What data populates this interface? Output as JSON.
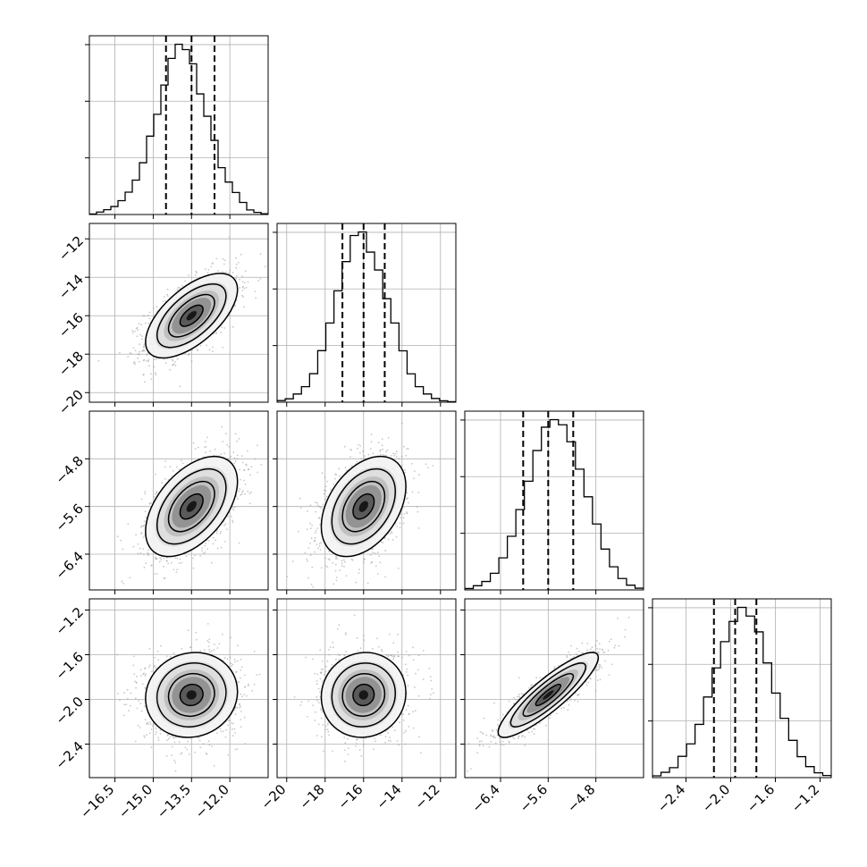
{
  "chart_data": {
    "type": "corner",
    "title": "",
    "colors": {
      "line": "#000000",
      "grid": "#b0b0b0",
      "scatter": "#9a9a9a",
      "background": "#ffffff"
    },
    "grid": true,
    "legend": "none",
    "parameters": [
      {
        "label": "",
        "range": [
          -17.5,
          -10.5
        ],
        "ticks": [
          -16.5,
          -15.0,
          -13.5,
          -12.0
        ],
        "tick_labels": [
          "−16.5",
          "−15.0",
          "−13.5",
          "−12.0"
        ],
        "quantiles": [
          -14.5,
          -13.5,
          -12.6
        ],
        "hist": [
          0.3,
          1.4,
          2.7,
          4.5,
          7.8,
          12.6,
          19.4,
          29.2,
          44.2,
          56.5,
          73.0,
          88.0,
          96.0,
          93.0,
          85.0,
          68.0,
          55.4,
          41.8,
          26.4,
          18.3,
          12.4,
          6.8,
          2.6,
          1.2,
          0.4
        ]
      },
      {
        "label": "",
        "range": [
          -20.5,
          -11.2
        ],
        "ticks": [
          -20,
          -18,
          -16,
          -14,
          -12
        ],
        "tick_labels": [
          "−20",
          "−18",
          "−16",
          "−14",
          "−12"
        ],
        "quantiles": [
          -17.1,
          -16.0,
          -14.9
        ],
        "hist": [
          0.9,
          1.9,
          4.6,
          8.7,
          16.0,
          28.9,
          44.4,
          62.4,
          78.8,
          93.4,
          95.4,
          84.1,
          74.1,
          58.0,
          44.4,
          28.8,
          15.9,
          8.7,
          4.6,
          2.1,
          0.8,
          0.3
        ]
      },
      {
        "label": "",
        "range": [
          -7.0,
          -4.0
        ],
        "ticks": [
          -6.4,
          -5.6,
          -4.8
        ],
        "tick_labels": [
          "−6.4",
          "−5.6",
          "−4.8"
        ],
        "quantiles": [
          -6.02,
          -5.6,
          -5.18
        ],
        "hist": [
          0.8,
          2.4,
          4.8,
          9.5,
          18.3,
          30.6,
          45.8,
          62.0,
          79.5,
          92.8,
          97.1,
          94.2,
          84.5,
          68.9,
          53.1,
          37.6,
          23.3,
          13.2,
          6.5,
          2.7,
          1.0
        ]
      },
      {
        "label": "",
        "range": [
          -2.7,
          -1.1
        ],
        "ticks": [
          -2.4,
          -2.0,
          -1.6,
          -1.2
        ],
        "tick_labels": [
          "−2.4",
          "−2.0",
          "−1.6",
          "−1.2"
        ],
        "quantiles": [
          -2.15,
          -1.96,
          -1.77
        ],
        "hist": [
          1.0,
          3.0,
          5.6,
          12.0,
          19.0,
          30.0,
          45.4,
          61.8,
          76.6,
          88.0,
          95.9,
          91.0,
          82.1,
          64.6,
          47.6,
          33.4,
          21.0,
          11.8,
          6.2,
          2.7,
          1.2
        ]
      }
    ],
    "pairs": [
      {
        "x": 0,
        "y": 1,
        "means": [
          -13.5,
          -16.0
        ],
        "sds": [
          0.9,
          1.1
        ],
        "rho": 0.62
      },
      {
        "x": 0,
        "y": 2,
        "means": [
          -13.5,
          -5.6
        ],
        "sds": [
          0.9,
          0.42
        ],
        "rho": 0.5
      },
      {
        "x": 1,
        "y": 2,
        "means": [
          -16.0,
          -5.6
        ],
        "sds": [
          1.1,
          0.42
        ],
        "rho": 0.4
      },
      {
        "x": 0,
        "y": 3,
        "means": [
          -13.5,
          -1.96
        ],
        "sds": [
          0.9,
          0.19
        ],
        "rho": 0.08
      },
      {
        "x": 1,
        "y": 3,
        "means": [
          -16.0,
          -1.96
        ],
        "sds": [
          1.1,
          0.19
        ],
        "rho": 0.05
      },
      {
        "x": 2,
        "y": 3,
        "means": [
          -5.6,
          -1.96
        ],
        "sds": [
          0.42,
          0.19
        ],
        "rho": 0.88
      }
    ],
    "contour_levels_sigma": [
      0.5,
      1.0,
      1.5,
      2.0
    ]
  }
}
